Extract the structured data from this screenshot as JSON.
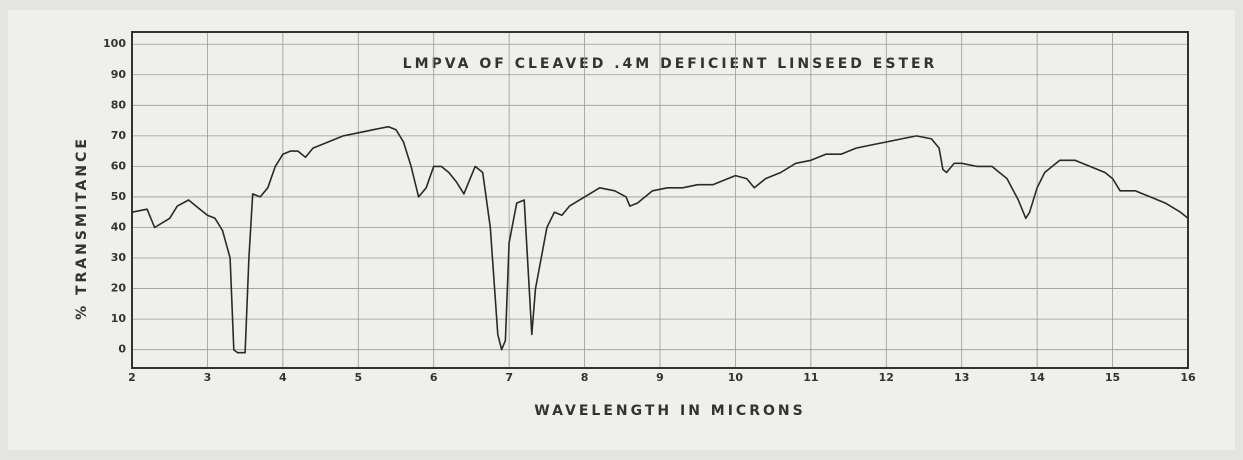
{
  "chart_data": {
    "type": "line",
    "title": "LMPVA OF CLEAVED .4M DEFICIENT LINSEED ESTER",
    "x_label": "WAVELENGTH IN MICRONS",
    "y_label": "% TRANSMITANCE",
    "x": [
      2.0,
      2.2,
      2.3,
      2.5,
      2.6,
      2.75,
      2.9,
      3.0,
      3.1,
      3.2,
      3.3,
      3.35,
      3.4,
      3.5,
      3.55,
      3.6,
      3.7,
      3.8,
      3.9,
      4.0,
      4.1,
      4.2,
      4.3,
      4.4,
      4.6,
      4.8,
      5.0,
      5.2,
      5.4,
      5.5,
      5.6,
      5.7,
      5.8,
      5.9,
      6.0,
      6.1,
      6.2,
      6.3,
      6.4,
      6.5,
      6.55,
      6.65,
      6.75,
      6.85,
      6.9,
      6.95,
      7.0,
      7.1,
      7.2,
      7.3,
      7.35,
      7.5,
      7.6,
      7.7,
      7.8,
      8.0,
      8.2,
      8.4,
      8.55,
      8.6,
      8.7,
      8.9,
      9.1,
      9.3,
      9.5,
      9.7,
      9.9,
      10.0,
      10.15,
      10.25,
      10.4,
      10.6,
      10.8,
      11.0,
      11.2,
      11.4,
      11.6,
      11.8,
      12.0,
      12.2,
      12.4,
      12.6,
      12.7,
      12.75,
      12.8,
      12.9,
      13.0,
      13.2,
      13.4,
      13.6,
      13.75,
      13.85,
      13.9,
      14.0,
      14.1,
      14.3,
      14.5,
      14.7,
      14.9,
      15.0,
      15.1,
      15.3,
      15.5,
      15.7,
      15.9,
      16.0
    ],
    "series": [
      {
        "color": "#2a2a2a",
        "values": [
          45,
          46,
          40,
          43,
          47,
          49,
          46,
          44,
          43,
          39,
          30,
          0,
          -1,
          -1,
          30,
          51,
          50,
          53,
          60,
          64,
          65,
          65,
          63,
          66,
          68,
          70,
          71,
          72,
          73,
          72,
          68,
          60,
          50,
          53,
          60,
          60,
          58,
          55,
          51,
          57,
          60,
          58,
          40,
          5,
          0,
          3,
          35,
          48,
          49,
          5,
          20,
          40,
          45,
          44,
          47,
          50,
          53,
          52,
          50,
          47,
          48,
          52,
          53,
          53,
          54,
          54,
          56,
          57,
          56,
          53,
          56,
          58,
          61,
          62,
          64,
          64,
          66,
          67,
          68,
          69,
          70,
          69,
          66,
          59,
          58,
          61,
          61,
          60,
          60,
          56,
          49,
          43,
          45,
          53,
          58,
          62,
          62,
          60,
          58,
          56,
          52,
          52,
          50,
          48,
          45,
          43
        ]
      }
    ],
    "xlim": [
      2,
      16
    ],
    "xticks": [
      2,
      3,
      4,
      5,
      6,
      7,
      8,
      9,
      10,
      11,
      12,
      13,
      14,
      15,
      16
    ],
    "ylim": [
      -6,
      104
    ],
    "yticks": [
      0,
      10,
      20,
      30,
      40,
      50,
      60,
      70,
      80,
      90,
      100
    ],
    "grid": true
  }
}
